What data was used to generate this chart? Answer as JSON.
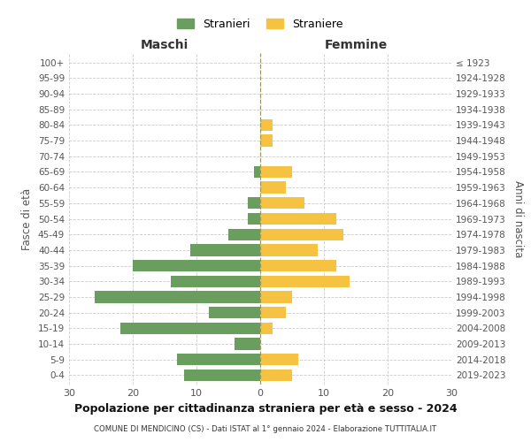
{
  "age_groups": [
    "0-4",
    "5-9",
    "10-14",
    "15-19",
    "20-24",
    "25-29",
    "30-34",
    "35-39",
    "40-44",
    "45-49",
    "50-54",
    "55-59",
    "60-64",
    "65-69",
    "70-74",
    "75-79",
    "80-84",
    "85-89",
    "90-94",
    "95-99",
    "100+"
  ],
  "birth_years": [
    "2019-2023",
    "2014-2018",
    "2009-2013",
    "2004-2008",
    "1999-2003",
    "1994-1998",
    "1989-1993",
    "1984-1988",
    "1979-1983",
    "1974-1978",
    "1969-1973",
    "1964-1968",
    "1959-1963",
    "1954-1958",
    "1949-1953",
    "1944-1948",
    "1939-1943",
    "1934-1938",
    "1929-1933",
    "1924-1928",
    "≤ 1923"
  ],
  "males": [
    12,
    13,
    4,
    22,
    8,
    26,
    14,
    20,
    11,
    5,
    2,
    2,
    0,
    1,
    0,
    0,
    0,
    0,
    0,
    0,
    0
  ],
  "females": [
    5,
    6,
    0,
    2,
    4,
    5,
    14,
    12,
    9,
    13,
    12,
    7,
    4,
    5,
    0,
    2,
    2,
    0,
    0,
    0,
    0
  ],
  "male_color": "#6a9e5e",
  "female_color": "#f5c242",
  "title": "Popolazione per cittadinanza straniera per età e sesso - 2024",
  "subtitle": "COMUNE DI MENDICINO (CS) - Dati ISTAT al 1° gennaio 2024 - Elaborazione TUTTITALIA.IT",
  "xlabel_left": "Maschi",
  "xlabel_right": "Femmine",
  "ylabel_left": "Fasce di età",
  "ylabel_right": "Anni di nascita",
  "legend_stranieri": "Stranieri",
  "legend_straniere": "Straniere",
  "xlim": 30,
  "background_color": "#ffffff",
  "grid_color": "#cccccc",
  "bar_height": 0.75
}
